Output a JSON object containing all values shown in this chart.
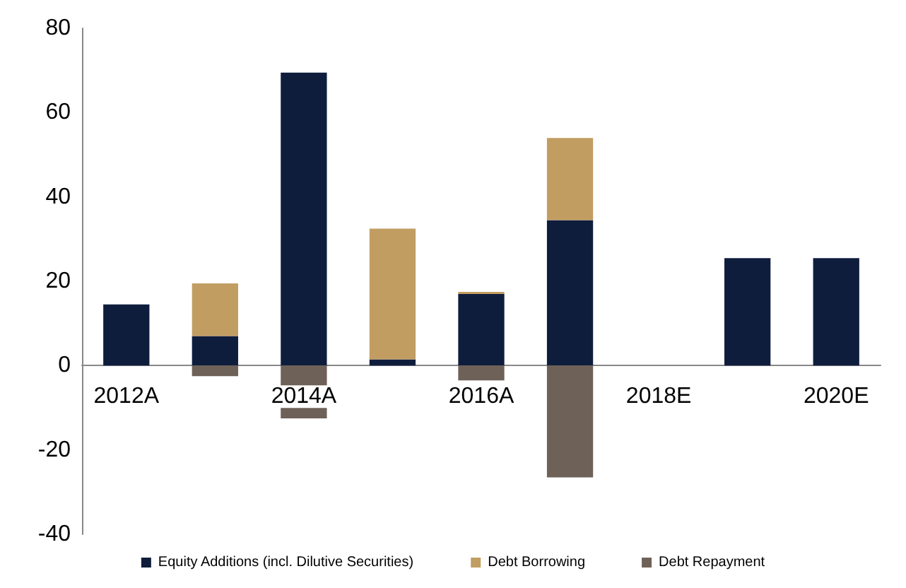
{
  "chart_data": {
    "type": "bar",
    "stacked": true,
    "categories": [
      "2012A",
      null,
      "2014A",
      null,
      "2016A",
      null,
      "2018E",
      null,
      "2020E"
    ],
    "series": [
      {
        "name": "Equity Additions (incl. Dilutive Securities)",
        "color": "#0f1d3d",
        "values": [
          14.5,
          7,
          69.5,
          1.5,
          17,
          34.5,
          null,
          25.5,
          25.5
        ]
      },
      {
        "name": "Debt Borrowing",
        "color": "#c29d62",
        "values": [
          null,
          12.5,
          null,
          31,
          0.5,
          19.5,
          null,
          null,
          null
        ]
      },
      {
        "name": "Debt Repayment",
        "color": "#6e6157",
        "values": [
          null,
          -2.5,
          -12.5,
          null,
          -3.5,
          -26.5,
          null,
          null,
          null
        ]
      }
    ],
    "ylim": [
      -40,
      80
    ],
    "yticks": [
      -40,
      -20,
      0,
      20,
      40,
      60,
      80
    ],
    "grid": false,
    "legend": "bottom"
  }
}
